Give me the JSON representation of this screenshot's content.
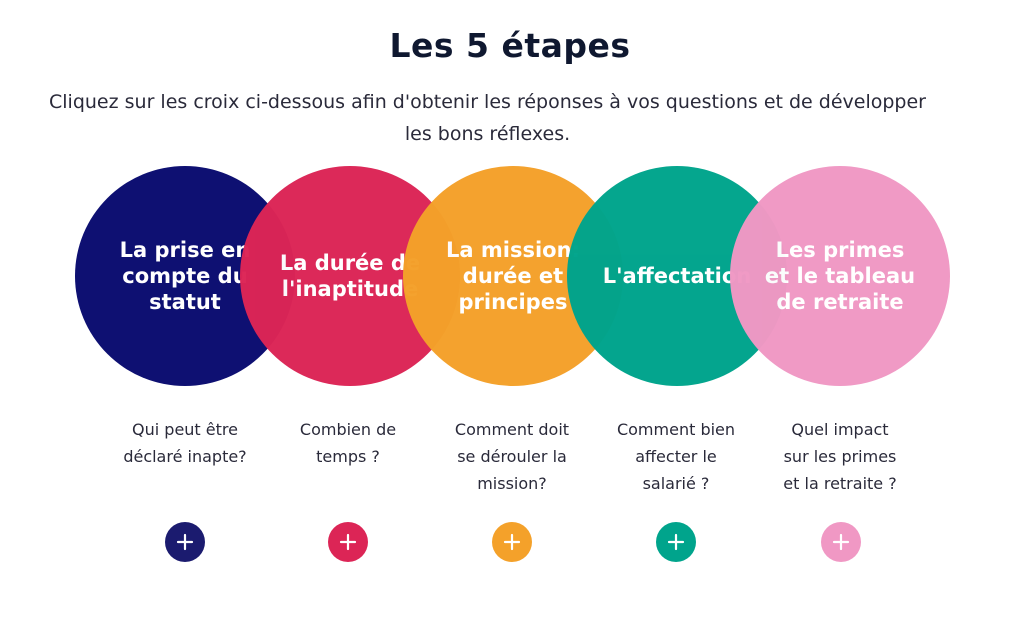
{
  "header": {
    "title": "Les 5 étapes",
    "intro": "Cliquez sur les croix ci-dessous afin d'obtenir les réponses à vos questions et de développer les bons réflexes."
  },
  "steps": [
    {
      "label": "La prise en\ncompte du\nstatut",
      "question": "Qui peut être\ndéclaré inapte?",
      "color": "#0e1072",
      "icon": "plus-icon"
    },
    {
      "label": "La durée de\nl'inaptitude",
      "question": "Combien de\ntemps  ?",
      "color": "#dc2556",
      "icon": "plus-icon"
    },
    {
      "label": "La mission:\ndurée et\nprincipes",
      "question": "Comment doit\nse dérouler la\nmission?",
      "color": "#f4a12a",
      "icon": "plus-icon"
    },
    {
      "label": "L'affectation",
      "question": "Comment bien\naffecter le\nsalarié ?",
      "color": "#00a48c",
      "icon": "plus-icon"
    },
    {
      "label": "Les primes\net le tableau\nde retraite",
      "question": "Quel impact\nsur les primes\net la retraite ?",
      "color": "#f098c4",
      "icon": "plus-icon"
    }
  ]
}
